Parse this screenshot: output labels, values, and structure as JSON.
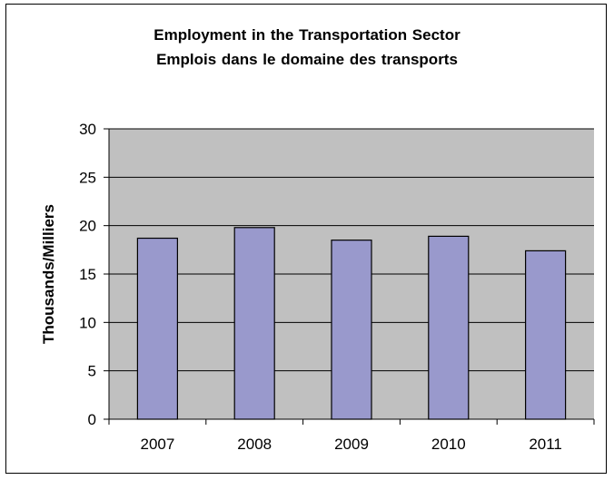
{
  "chart_data": {
    "type": "bar",
    "title": "Employment in the Transportation Sector",
    "subtitle": "Emplois dans le domaine des transports",
    "xlabel": "",
    "ylabel": "Thousands/Milliers",
    "categories": [
      "2007",
      "2008",
      "2009",
      "2010",
      "2011"
    ],
    "values": [
      18.7,
      19.8,
      18.5,
      18.9,
      17.4
    ],
    "ylim": [
      0,
      30
    ],
    "yticks": [
      "0",
      "5",
      "10",
      "15",
      "20",
      "25",
      "30"
    ],
    "grid": true,
    "legend": "none",
    "colors": {
      "bar_fill": "#9999cc",
      "bar_stroke": "#000000",
      "plot_background": "#c0c0c0",
      "gridline": "#000000"
    }
  }
}
